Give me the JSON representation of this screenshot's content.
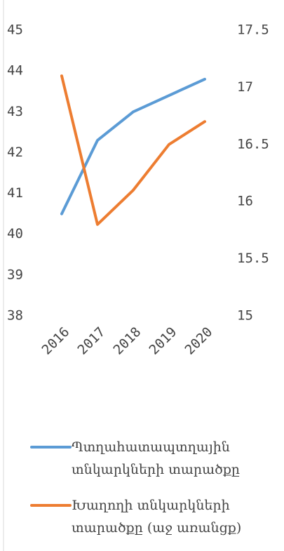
{
  "chart_data": {
    "type": "line",
    "categories": [
      "2016",
      "2017",
      "2018",
      "2019",
      "2020"
    ],
    "series": [
      {
        "name": "Պտղահատապտղային տնկարկների տարածքը",
        "color": "#5b9bd5",
        "values": [
          40.5,
          42.3,
          43.0,
          43.4,
          43.8
        ]
      },
      {
        "name": "Խաղողի տնկարկների տարածքը (աջ առանցք)",
        "color": "#ed7d31",
        "values": [
          17.1,
          15.8,
          16.1,
          16.5,
          16.7
        ],
        "axis": "y2"
      }
    ],
    "ylim": [
      38,
      45
    ],
    "yticks": [
      38,
      39,
      40,
      41,
      42,
      43,
      44,
      45
    ],
    "y2lim": [
      15,
      17.5
    ],
    "y2ticks": [
      15,
      15.5,
      16,
      16.5,
      17,
      17.5
    ],
    "grid": false,
    "legend": "bottom"
  }
}
